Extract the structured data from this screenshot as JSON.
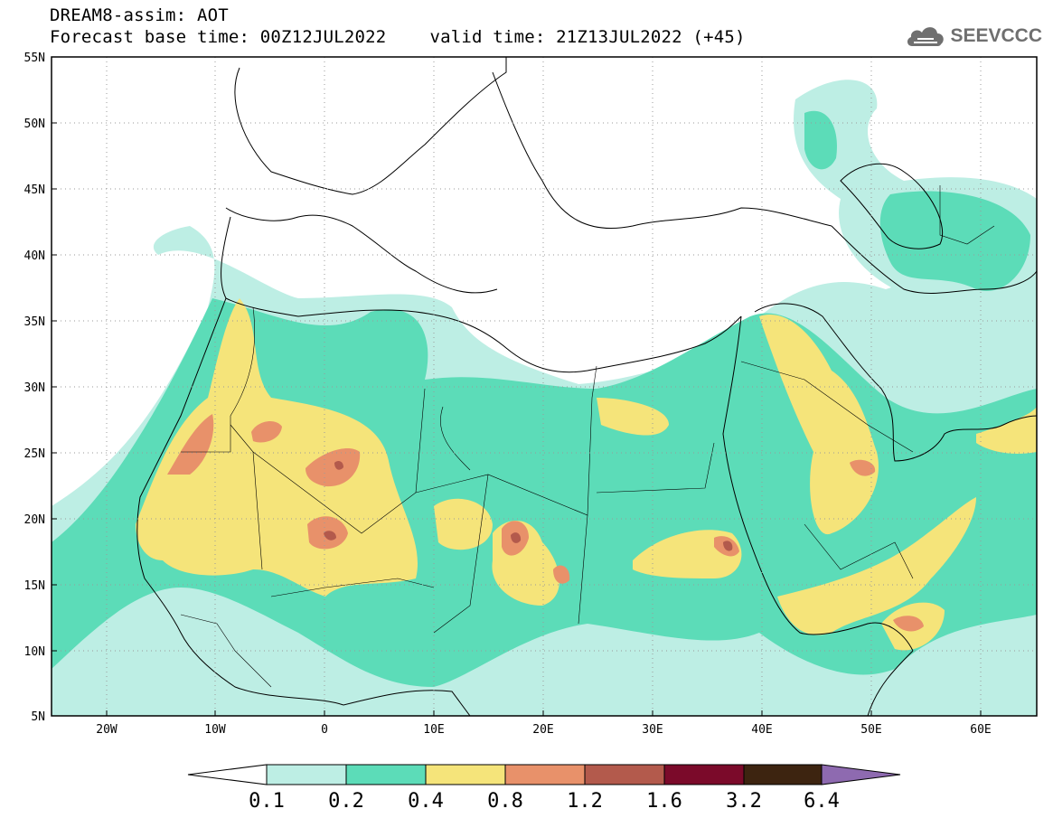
{
  "header": {
    "title_line1": "DREAM8-assim: AOT",
    "title_base": "Forecast base time: 00Z12JUL2022",
    "title_valid": "valid time: 21Z13JUL2022 (+45)",
    "logo_text": "SEEVCCC",
    "logo_icon": "cloud-icon"
  },
  "map": {
    "lon_range": [
      -25,
      65
    ],
    "lat_range": [
      5,
      55
    ],
    "lon_ticks": [
      {
        "value": -20,
        "label": "20W"
      },
      {
        "value": -10,
        "label": "10W"
      },
      {
        "value": 0,
        "label": "0"
      },
      {
        "value": 10,
        "label": "10E"
      },
      {
        "value": 20,
        "label": "20E"
      },
      {
        "value": 30,
        "label": "30E"
      },
      {
        "value": 40,
        "label": "40E"
      },
      {
        "value": 50,
        "label": "50E"
      },
      {
        "value": 60,
        "label": "60E"
      }
    ],
    "lat_ticks": [
      {
        "value": 55,
        "label": "55N"
      },
      {
        "value": 50,
        "label": "50N"
      },
      {
        "value": 45,
        "label": "45N"
      },
      {
        "value": 40,
        "label": "40N"
      },
      {
        "value": 35,
        "label": "35N"
      },
      {
        "value": 30,
        "label": "30N"
      },
      {
        "value": 25,
        "label": "25N"
      },
      {
        "value": 20,
        "label": "20N"
      },
      {
        "value": 15,
        "label": "15N"
      },
      {
        "value": 10,
        "label": "10N"
      },
      {
        "value": 5,
        "label": "5N"
      }
    ],
    "grid": true
  },
  "colorbar": {
    "labels": [
      "0.1",
      "0.2",
      "0.4",
      "0.8",
      "1.2",
      "1.6",
      "3.2",
      "6.4"
    ],
    "colors": [
      "#ffffff",
      "#bdeee4",
      "#5cdcb8",
      "#f5e47a",
      "#e8916a",
      "#b35a4c",
      "#7b0a2a",
      "#3d2410",
      "#8e6ab0"
    ]
  }
}
